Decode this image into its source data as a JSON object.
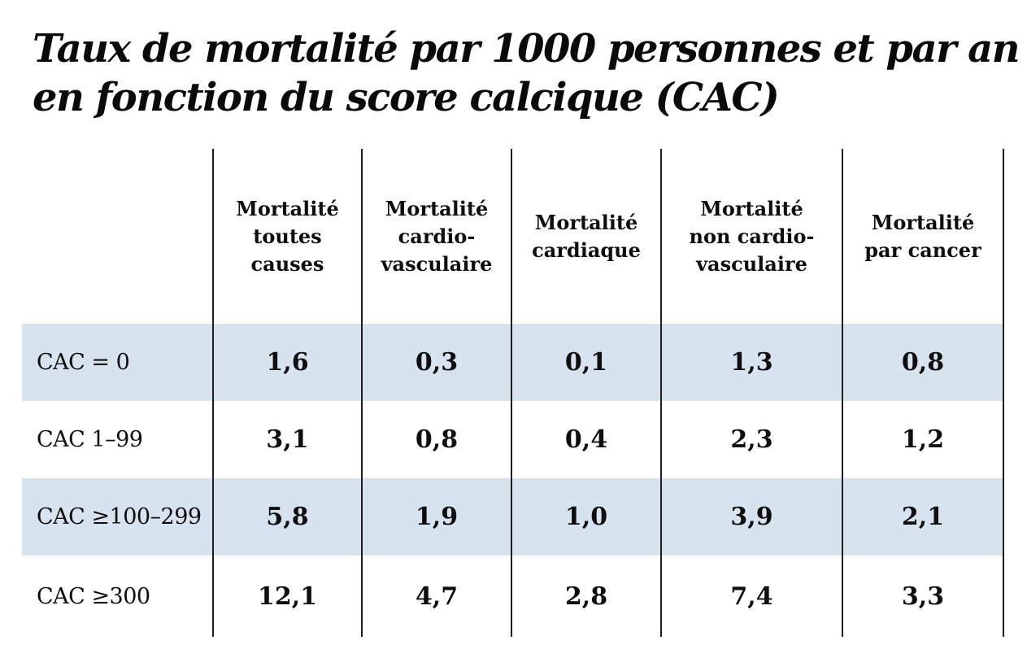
{
  "title_lines": [
    "Taux de mortalité par 1000 personnes et par an",
    "en fonction du score calcique (CAC)"
  ],
  "table": {
    "headers": [
      [
        "Mortalité",
        "toutes",
        "causes"
      ],
      [
        "Mortalité",
        "cardio-",
        "vasculaire"
      ],
      [
        "Mortalité",
        "cardiaque"
      ],
      [
        "Mortalité",
        "non cardio-",
        "vasculaire"
      ],
      [
        "Mortalité",
        "par cancer"
      ]
    ],
    "rows": [
      {
        "label": "CAC = 0",
        "values": [
          "1,6",
          "0,3",
          "0,1",
          "1,3",
          "0,8"
        ]
      },
      {
        "label": "CAC 1–99",
        "values": [
          "3,1",
          "0,8",
          "0,4",
          "2,3",
          "1,2"
        ]
      },
      {
        "label": "CAC ≥100–299",
        "values": [
          "5,8",
          "1,9",
          "1,0",
          "3,9",
          "2,1"
        ]
      },
      {
        "label": "CAC ≥300",
        "values": [
          "12,1",
          "4,7",
          "2,8",
          "7,4",
          "3,3"
        ]
      }
    ]
  },
  "chart_data": {
    "type": "table",
    "title": "Taux de mortalité par 1000 personnes et par an en fonction du score calcique (CAC)",
    "columns": [
      "",
      "Mortalité toutes causes",
      "Mortalité cardio-vasculaire",
      "Mortalité cardiaque",
      "Mortalité non cardio-vasculaire",
      "Mortalité par cancer"
    ],
    "rows": [
      {
        "label": "CAC = 0",
        "values": [
          1.6,
          0.3,
          0.1,
          1.3,
          0.8
        ]
      },
      {
        "label": "CAC 1–99",
        "values": [
          3.1,
          0.8,
          0.4,
          2.3,
          1.2
        ]
      },
      {
        "label": "CAC ≥100–299",
        "values": [
          5.8,
          1.9,
          1.0,
          3.9,
          2.1
        ]
      },
      {
        "label": "CAC ≥300",
        "values": [
          12.1,
          4.7,
          2.8,
          7.4,
          3.3
        ]
      }
    ],
    "notes": "Valeurs affichées avec virgule décimale (format français)",
    "layout": {
      "highlighted_rows": [
        0,
        2
      ],
      "highlight_color": "#d7e4f0",
      "gridlines": "vertical-only"
    }
  },
  "colors": {
    "row_highlight": "#d7e4f0",
    "line": "#1e1e1e",
    "text": "#0e0e0e",
    "background": "#ffffff"
  }
}
